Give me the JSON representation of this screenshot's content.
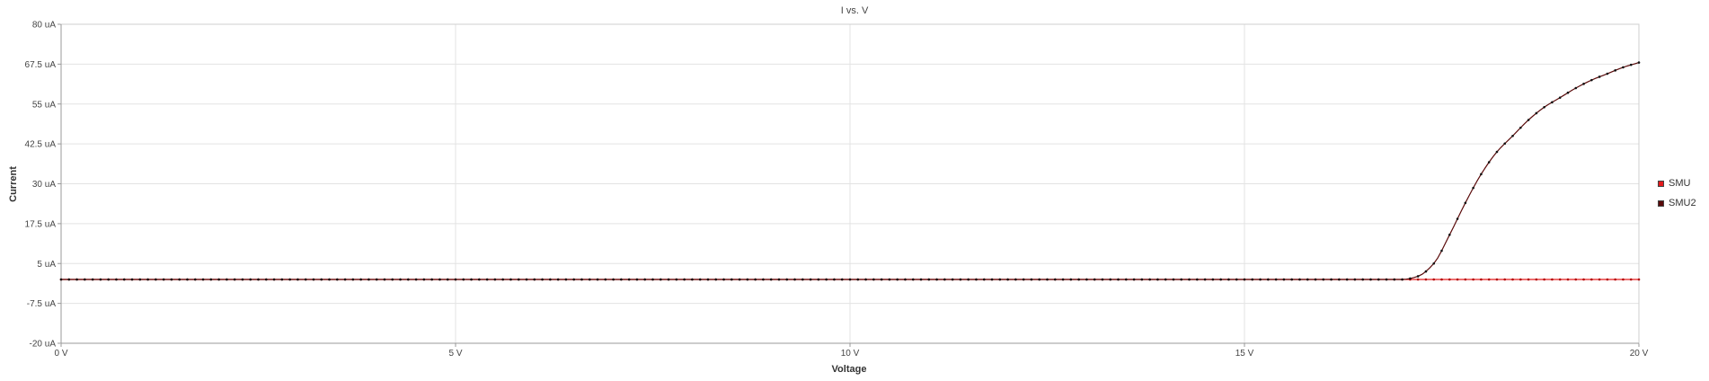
{
  "chart_data": {
    "type": "line",
    "title": "I vs. V",
    "xlabel": "Voltage",
    "ylabel": "Current",
    "xlim": [
      0,
      20
    ],
    "ylim": [
      -20,
      80
    ],
    "x_ticks": [
      "0 V",
      "5 V",
      "10 V",
      "15 V",
      "20 V"
    ],
    "y_ticks": [
      "-20 uA",
      "-7.5 uA",
      "5 uA",
      "17.5 uA",
      "30 uA",
      "42.5 uA",
      "55 uA",
      "67.5 uA",
      "80 uA"
    ],
    "grid": true,
    "legend_position": "right",
    "x": [
      0,
      17.0,
      17.2,
      17.4,
      17.6,
      17.8,
      18.0,
      18.2,
      18.4,
      18.6,
      18.8,
      19.0,
      19.2,
      19.4,
      19.6,
      19.8,
      20.0
    ],
    "series": [
      {
        "name": "SMU",
        "color": "#e41a1c",
        "values": [
          0,
          0,
          0,
          0,
          0,
          0,
          0,
          0,
          0,
          0,
          0,
          0,
          0,
          0,
          0,
          0,
          0
        ]
      },
      {
        "name": "SMU2",
        "color": "#5a0a0a",
        "values": [
          0,
          0,
          1,
          5,
          14,
          24,
          33,
          40,
          45,
          50,
          54,
          57,
          60,
          62.5,
          64.5,
          66.5,
          68
        ]
      }
    ]
  }
}
